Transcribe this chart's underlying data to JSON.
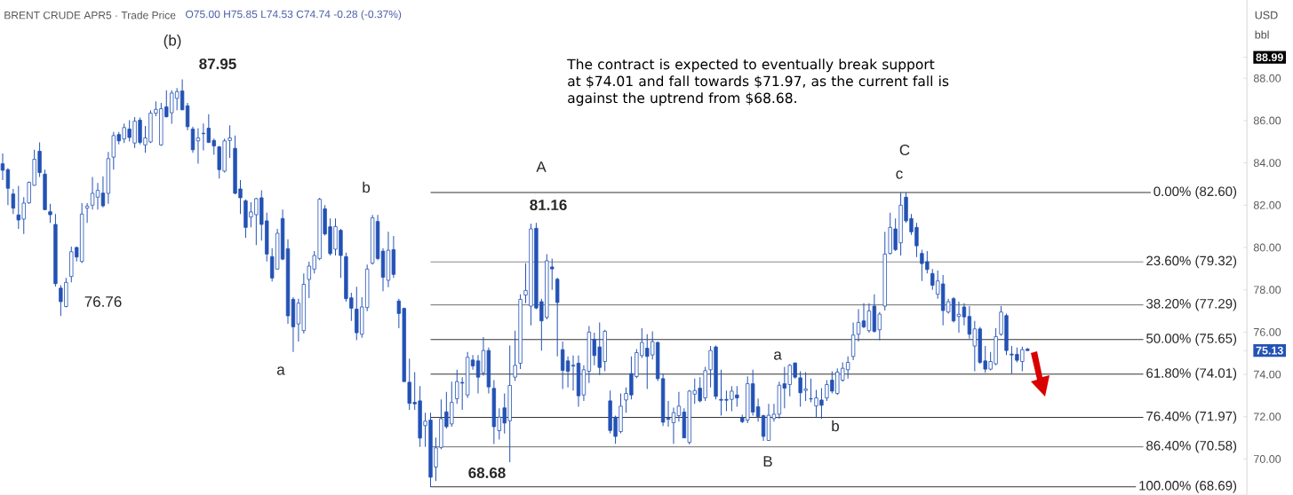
{
  "chart_data": {
    "type": "candlestick",
    "title": "BRENT CRUDE APR5 · Trade Price",
    "subtitle": "O75.00 H75.85 L74.53 C74.74 -0.28 (-0.37%)",
    "color": "#2352b5",
    "categories": [
      null,
      null,
      null,
      null,
      null,
      null,
      null,
      null,
      null,
      null,
      null,
      null,
      null,
      null,
      null,
      null,
      null,
      null,
      null,
      null,
      null,
      null,
      null,
      null,
      null,
      null,
      null,
      null,
      null,
      null,
      null,
      null,
      null,
      null,
      null,
      null,
      null,
      null,
      null,
      null,
      null,
      null,
      null,
      null,
      null,
      null,
      null,
      null,
      null,
      null,
      null,
      null,
      null,
      null,
      null,
      null,
      null,
      null,
      null,
      null,
      null,
      null,
      null,
      null,
      null,
      null,
      null,
      null,
      null,
      null,
      null,
      null,
      null,
      null,
      null,
      null,
      null,
      null,
      null,
      null,
      null,
      null,
      null,
      null,
      null,
      null,
      null,
      null,
      null,
      null,
      null,
      null,
      null,
      null,
      null,
      null,
      null,
      null,
      null,
      null,
      null,
      null,
      null,
      null,
      null,
      null,
      null,
      null,
      null,
      null,
      null,
      null,
      null,
      null,
      null,
      null,
      null,
      null,
      null,
      null,
      null,
      null,
      null,
      null,
      null,
      null,
      null,
      null,
      null,
      null,
      null,
      null,
      null,
      null,
      null,
      null,
      null,
      null,
      null,
      null,
      null,
      null,
      null,
      null,
      null,
      null,
      null,
      null,
      null,
      null,
      null,
      null,
      null,
      null,
      null,
      null,
      null,
      null,
      null,
      null,
      null,
      null,
      null,
      null,
      null,
      null,
      null,
      null,
      null,
      null,
      null,
      null,
      null,
      null,
      null,
      null,
      null,
      null,
      null,
      null,
      null,
      null,
      null,
      null,
      null,
      null,
      null,
      null,
      null,
      null,
      null,
      null,
      null,
      null,
      null,
      null,
      null,
      null,
      null,
      null,
      null,
      null,
      null,
      null,
      null,
      null,
      null,
      null,
      null,
      null,
      null,
      null,
      null,
      null,
      null,
      null,
      null,
      null,
      null,
      null,
      null,
      null,
      null,
      null,
      null,
      null,
      null,
      null,
      null,
      null,
      null,
      null,
      null,
      null,
      null,
      null
    ],
    "ohlc": [
      [
        83.96,
        84.45,
        83.19,
        83.65
      ],
      [
        83.68,
        83.75,
        82.0,
        82.8
      ],
      [
        82.53,
        82.77,
        81.58,
        81.86
      ],
      [
        81.54,
        82.91,
        80.88,
        81.3
      ],
      [
        81.34,
        82.38,
        80.64,
        82.1
      ],
      [
        82.11,
        83.12,
        82.07,
        83.08
      ],
      [
        82.94,
        84.62,
        82.91,
        84.17
      ],
      [
        84.55,
        84.97,
        83.33,
        83.54
      ],
      [
        83.47,
        83.68,
        81.76,
        81.79
      ],
      [
        81.69,
        82.07,
        81.16,
        81.55
      ],
      [
        81.09,
        81.58,
        78.15,
        78.29
      ],
      [
        78.08,
        78.22,
        76.76,
        77.44
      ],
      [
        77.21,
        78.56,
        77.17,
        78.35
      ],
      [
        78.63,
        80.04,
        78.35,
        79.8
      ],
      [
        80.0,
        80.04,
        79.34,
        79.55
      ],
      [
        79.34,
        82.1,
        79.27,
        81.58
      ],
      [
        81.86,
        82.1,
        81.16,
        81.96
      ],
      [
        82.0,
        83.33,
        81.79,
        82.56
      ],
      [
        82.38,
        83.05,
        81.79,
        82.7
      ],
      [
        82.57,
        83.36,
        81.9,
        81.97
      ],
      [
        82.56,
        84.52,
        82.07,
        84.2
      ],
      [
        84.27,
        85.46,
        83.68,
        85.29
      ],
      [
        85.34,
        85.46,
        84.87,
        85.04
      ],
      [
        85.13,
        85.86,
        84.94,
        85.67
      ],
      [
        85.6,
        86.02,
        85.01,
        85.2
      ],
      [
        84.94,
        86.16,
        84.71,
        85.97
      ],
      [
        86.02,
        86.14,
        84.87,
        84.97
      ],
      [
        84.85,
        85.74,
        84.48,
        85.18
      ],
      [
        84.99,
        86.49,
        84.94,
        86.35
      ],
      [
        86.35,
        86.91,
        86.21,
        86.53
      ],
      [
        84.85,
        86.84,
        84.8,
        86.56
      ],
      [
        86.65,
        87.43,
        86.14,
        86.18
      ],
      [
        86.37,
        87.43,
        85.85,
        87.3
      ],
      [
        87.05,
        87.54,
        86.49,
        87.37
      ],
      [
        87.4,
        87.95,
        86.49,
        86.51
      ],
      [
        86.7,
        86.84,
        85.55,
        85.71
      ],
      [
        85.6,
        85.71,
        84.48,
        84.62
      ],
      [
        85.04,
        85.64,
        83.96,
        85.18
      ],
      [
        85.4,
        85.86,
        84.59,
        85.38
      ],
      [
        85.64,
        86.3,
        84.94,
        84.97
      ],
      [
        85.06,
        85.15,
        84.38,
        84.8
      ],
      [
        84.76,
        84.8,
        83.26,
        83.68
      ],
      [
        83.61,
        85.15,
        83.54,
        85.04
      ],
      [
        85.06,
        85.78,
        84.24,
        85.18
      ],
      [
        84.69,
        85.29,
        82.52,
        82.56
      ],
      [
        82.77,
        83.19,
        81.58,
        82.35
      ],
      [
        82.21,
        82.28,
        80.46,
        80.95
      ],
      [
        81.44,
        82.14,
        80.95,
        81.68
      ],
      [
        81.55,
        82.35,
        80.11,
        82.31
      ],
      [
        82.35,
        82.7,
        80.32,
        81.09
      ],
      [
        81.26,
        81.65,
        79.34,
        79.69
      ],
      [
        79.57,
        79.97,
        78.4,
        78.56
      ],
      [
        78.98,
        80.88,
        78.96,
        80.67
      ],
      [
        81.37,
        81.79,
        79.4,
        79.45
      ],
      [
        79.94,
        80.39,
        76.39,
        76.77
      ],
      [
        77.55,
        77.65,
        75.06,
        76.25
      ],
      [
        76.39,
        77.58,
        75.55,
        77.37
      ],
      [
        76.07,
        78.77,
        75.93,
        78.26
      ],
      [
        78.49,
        79.33,
        77.61,
        79.12
      ],
      [
        78.98,
        79.83,
        78.77,
        79.62
      ],
      [
        79.48,
        82.35,
        79.4,
        82.28
      ],
      [
        81.83,
        82.0,
        80.57,
        80.64
      ],
      [
        80.98,
        81.37,
        79.62,
        79.71
      ],
      [
        79.92,
        81.37,
        79.62,
        80.99
      ],
      [
        80.81,
        80.88,
        78.56,
        79.62
      ],
      [
        79.57,
        79.76,
        77.44,
        77.58
      ],
      [
        77.62,
        77.86,
        76.53,
        77.13
      ],
      [
        77.09,
        78.14,
        75.62,
        75.97
      ],
      [
        75.9,
        77.65,
        75.73,
        77.19
      ],
      [
        77.16,
        79.19,
        76.99,
        78.98
      ],
      [
        79.26,
        81.54,
        79.19,
        81.4
      ],
      [
        81.23,
        81.54,
        79.4,
        79.48
      ],
      [
        79.83,
        79.97,
        77.93,
        78.59
      ],
      [
        78.45,
        80.74,
        78.12,
        79.87
      ],
      [
        79.9,
        80.55,
        78.56,
        78.73
      ],
      [
        77.47,
        77.58,
        76.18,
        76.88
      ],
      [
        77.12,
        77.16,
        73.66,
        73.66
      ],
      [
        73.63,
        74.75,
        72.33,
        72.63
      ],
      [
        72.68,
        74.11,
        72.33,
        72.61
      ],
      [
        72.75,
        73.45,
        70.57,
        70.99
      ],
      [
        71.58,
        72.19,
        70.57,
        71.79
      ],
      [
        71.84,
        72.19,
        68.68,
        69.14
      ],
      [
        69.62,
        71.02,
        68.96,
        70.53
      ],
      [
        70.55,
        72.82,
        70.46,
        71.91
      ],
      [
        72.23,
        73.17,
        71.44,
        71.53
      ],
      [
        71.66,
        73.66,
        71.53,
        72.68
      ],
      [
        72.85,
        74.22,
        72.61,
        73.66
      ],
      [
        73.62,
        73.87,
        72.33,
        73.59
      ],
      [
        73.03,
        75.06,
        72.89,
        74.81
      ],
      [
        74.68,
        74.92,
        74.22,
        74.4
      ],
      [
        74.64,
        74.92,
        73.1,
        73.87
      ],
      [
        74.08,
        75.76,
        73.94,
        75.13
      ],
      [
        75.13,
        75.27,
        73.1,
        73.41
      ],
      [
        73.34,
        73.73,
        70.71,
        71.53
      ],
      [
        71.34,
        72.4,
        70.92,
        71.98
      ],
      [
        72.42,
        73.1,
        71.2,
        71.7
      ],
      [
        71.81,
        75.37,
        69.85,
        73.48
      ],
      [
        73.87,
        76.07,
        73.69,
        74.43
      ],
      [
        74.53,
        77.79,
        74.25,
        77.55
      ],
      [
        77.75,
        79.26,
        77.37,
        77.97
      ],
      [
        77.23,
        81.12,
        76.32,
        80.88
      ],
      [
        80.91,
        81.16,
        77.09,
        77.14
      ],
      [
        77.44,
        77.58,
        75.13,
        76.53
      ],
      [
        76.7,
        79.69,
        76.6,
        79.37
      ],
      [
        79.08,
        79.48,
        78.0,
        78.99
      ],
      [
        78.5,
        78.57,
        74.85,
        77.4
      ],
      [
        75.17,
        75.55,
        73.31,
        74.19
      ],
      [
        74.64,
        74.85,
        73.38,
        74.15
      ],
      [
        74.43,
        74.89,
        73.24,
        74.4
      ],
      [
        74.53,
        74.89,
        72.47,
        72.99
      ],
      [
        73.03,
        74.43,
        72.75,
        74.22
      ],
      [
        74.15,
        76.29,
        73.59,
        76.0
      ],
      [
        75.66,
        75.97,
        74.43,
        74.89
      ],
      [
        75.3,
        76.46,
        73.97,
        74.33
      ],
      [
        74.61,
        76.11,
        74.15,
        76.04
      ],
      [
        72.75,
        73.24,
        71.21,
        71.35
      ],
      [
        71.98,
        72.05,
        70.72,
        71.07
      ],
      [
        71.3,
        73.1,
        71.21,
        72.5
      ],
      [
        72.79,
        73.38,
        72.19,
        73.1
      ],
      [
        74.04,
        74.85,
        72.82,
        73.03
      ],
      [
        73.9,
        75.2,
        73.83,
        75.03
      ],
      [
        74.89,
        76.18,
        74.78,
        75.51
      ],
      [
        75.24,
        75.9,
        73.31,
        74.85
      ],
      [
        74.92,
        76.04,
        74.71,
        75.55
      ],
      [
        75.51,
        75.55,
        73.69,
        73.8
      ],
      [
        73.8,
        74.05,
        71.56,
        71.74
      ],
      [
        71.93,
        72.75,
        71.53,
        71.88
      ],
      [
        71.72,
        72.43,
        70.72,
        72.19
      ],
      [
        72.05,
        73.17,
        71.77,
        72.5
      ],
      [
        72.22,
        72.4,
        71.0,
        71.0
      ],
      [
        70.79,
        73.27,
        70.69,
        73.21
      ],
      [
        73.07,
        73.8,
        72.61,
        73.24
      ],
      [
        73.35,
        73.87,
        72.68,
        72.75
      ],
      [
        72.89,
        74.36,
        72.75,
        74.18
      ],
      [
        74.22,
        75.34,
        73.38,
        75.13
      ],
      [
        75.3,
        75.37,
        72.82,
        72.96
      ],
      [
        72.82,
        74.22,
        72.05,
        72.78
      ],
      [
        72.82,
        73.24,
        72.26,
        72.78
      ],
      [
        72.82,
        73.45,
        72.26,
        73.21
      ],
      [
        73.03,
        73.45,
        72.47,
        72.89
      ],
      [
        71.95,
        72.09,
        71.7,
        71.77
      ],
      [
        71.84,
        73.91,
        71.7,
        73.56
      ],
      [
        73.56,
        74.22,
        72.05,
        72.22
      ],
      [
        72.47,
        72.86,
        71.77,
        72.01
      ],
      [
        72.05,
        72.09,
        70.86,
        71.07
      ],
      [
        70.88,
        72.61,
        70.86,
        72.07
      ],
      [
        71.91,
        72.61,
        71.77,
        72.12
      ],
      [
        72.12,
        73.66,
        71.91,
        73.49
      ],
      [
        73.56,
        74.36,
        72.4,
        73.35
      ],
      [
        73.52,
        74.5,
        72.96,
        74.43
      ],
      [
        74.54,
        74.57,
        73.8,
        73.87
      ],
      [
        73.84,
        74.15,
        72.47,
        73.13
      ],
      [
        73.24,
        74.11,
        72.75,
        73.31
      ],
      [
        72.85,
        73.8,
        72.68,
        72.84
      ],
      [
        72.51,
        73.27,
        71.98,
        72.89
      ],
      [
        72.79,
        73.35,
        71.91,
        72.54
      ],
      [
        72.89,
        73.73,
        72.75,
        73.52
      ],
      [
        73.73,
        74.15,
        73.1,
        73.21
      ],
      [
        73.1,
        74.29,
        73.03,
        74.11
      ],
      [
        73.73,
        74.57,
        73.66,
        74.29
      ],
      [
        74.22,
        74.85,
        73.8,
        74.57
      ],
      [
        74.85,
        76.46,
        74.67,
        75.86
      ],
      [
        75.9,
        77.09,
        75.55,
        76.46
      ],
      [
        76.53,
        77.37,
        76.18,
        76.25
      ],
      [
        76.07,
        77.37,
        75.97,
        77.0
      ],
      [
        77.23,
        77.79,
        75.97,
        76.04
      ],
      [
        76.11,
        76.95,
        75.62,
        76.85
      ],
      [
        77.23,
        80.74,
        77.02,
        79.69
      ],
      [
        79.72,
        81.65,
        79.66,
        80.95
      ],
      [
        80.88,
        81.37,
        79.83,
        79.9
      ],
      [
        80.22,
        82.6,
        79.62,
        82.0
      ],
      [
        82.38,
        82.6,
        81.16,
        81.26
      ],
      [
        81.37,
        81.58,
        80.6,
        80.74
      ],
      [
        80.95,
        81.16,
        79.55,
        80.08
      ],
      [
        79.72,
        79.9,
        78.42,
        79.24
      ],
      [
        79.33,
        79.83,
        78.77,
        78.96
      ],
      [
        78.77,
        78.98,
        78.0,
        78.21
      ],
      [
        77.79,
        78.91,
        77.58,
        78.42
      ],
      [
        78.28,
        78.7,
        76.32,
        77.02
      ],
      [
        76.95,
        77.58,
        76.88,
        77.44
      ],
      [
        77.58,
        77.65,
        76.46,
        76.53
      ],
      [
        76.74,
        77.44,
        75.97,
        76.84
      ],
      [
        77.19,
        77.37,
        76.32,
        76.72
      ],
      [
        76.74,
        77.23,
        75.69,
        75.9
      ],
      [
        75.34,
        76.53,
        74.15,
        76.15
      ],
      [
        76.15,
        76.25,
        74.5,
        74.57
      ],
      [
        74.64,
        75.34,
        74.08,
        74.25
      ],
      [
        74.25,
        75.06,
        74.19,
        74.61
      ],
      [
        74.5,
        76.18,
        74.43,
        75.79
      ],
      [
        75.9,
        77.23,
        75.83,
        76.95
      ],
      [
        76.78,
        76.88,
        74.92,
        75.13
      ],
      [
        74.96,
        75.34,
        74.05,
        74.92
      ],
      [
        74.95,
        75.27,
        74.57,
        74.67
      ],
      [
        74.61,
        75.31,
        74.15,
        75.17
      ],
      [
        75.2,
        75.25,
        75.1,
        75.13
      ],
      null,
      null,
      null,
      null,
      null,
      null,
      null,
      null,
      null,
      null,
      null,
      null,
      null,
      null,
      null,
      null,
      null,
      null,
      null,
      null,
      null,
      null,
      null,
      null,
      null,
      null,
      null,
      null,
      null,
      null,
      null,
      null,
      null,
      null,
      null,
      null,
      null,
      null,
      null,
      null,
      null
    ],
    "ylim": [
      68.3,
      91.7
    ],
    "yticks": [
      {
        "value": 70,
        "label": "70.00"
      },
      {
        "value": 72,
        "label": "72.00"
      },
      {
        "value": 74,
        "label": "74.00"
      },
      {
        "value": 75.13,
        "label": "75.13"
      },
      {
        "value": 76,
        "label": "76.00"
      },
      {
        "value": 78,
        "label": "78.00"
      },
      {
        "value": 80,
        "label": "80.00"
      },
      {
        "value": 82,
        "label": "82.00"
      },
      {
        "value": 84,
        "label": "84.00"
      },
      {
        "value": 86,
        "label": "86.00"
      },
      {
        "value": 88,
        "label": "88.00"
      },
      {
        "value": 88.99,
        "label": "88.99"
      }
    ],
    "ref_lines": [
      {
        "axis": "y",
        "value": 82.6,
        "label": "0.00% (82.60)",
        "color": "#333333"
      },
      {
        "axis": "y",
        "value": 79.32,
        "label": "23.60% (79.32)",
        "color": "#888888"
      },
      {
        "axis": "y",
        "value": 77.29,
        "label": "38.20% (77.29)",
        "color": "#888888"
      },
      {
        "axis": "y",
        "value": 75.65,
        "label": "50.00% (75.65)",
        "color": "#333333"
      },
      {
        "axis": "y",
        "value": 74.01,
        "label": "61.80% (74.01)",
        "color": "#333333"
      },
      {
        "axis": "y",
        "value": 71.97,
        "label": "76.40% (71.97)",
        "color": "#333333"
      },
      {
        "axis": "y",
        "value": 70.58,
        "label": "86.40% (70.58)",
        "color": "#888888"
      },
      {
        "axis": "y",
        "value": 68.69,
        "label": "100.00% (68.69)",
        "color": "#333333"
      }
    ],
    "annotations": [
      "(b)",
      "87.95",
      "76.76",
      "a",
      "b",
      "A",
      "81.16",
      "a",
      "b",
      "B",
      "C",
      "c",
      "68.68",
      "The contract is expected to eventually break support at $74.01 and fall towards $71.97, as the current fall is against the uptrend from $68.68.",
      "USD",
      "bbl"
    ]
  }
}
